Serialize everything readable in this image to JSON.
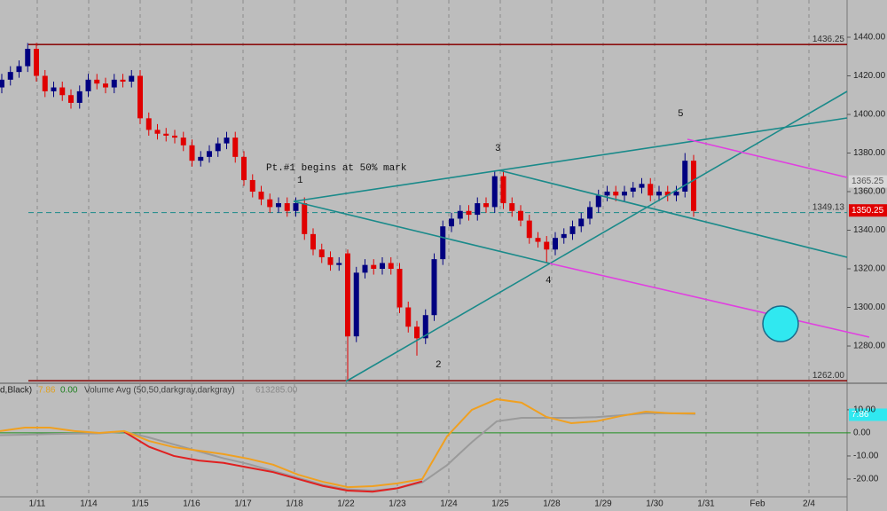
{
  "chart_data": [
    {
      "type": "candlestick",
      "xticks": [
        "1/11",
        "1/14",
        "1/15",
        "1/16",
        "1/17",
        "1/18",
        "1/22",
        "1/23",
        "1/24",
        "1/25",
        "1/28",
        "1/29",
        "1/30",
        "1/31",
        "Feb",
        "2/4"
      ],
      "ylim": [
        1260.7,
        1459.3
      ],
      "yticks": [
        {
          "value": 1280,
          "label": "1280.00"
        },
        {
          "value": 1300,
          "label": "1300.00"
        },
        {
          "value": 1320,
          "label": "1320.00"
        },
        {
          "value": 1340,
          "label": "1340.00"
        },
        {
          "value": 1360,
          "label": "1360.00"
        },
        {
          "value": 1380,
          "label": "1380.00"
        },
        {
          "value": 1400,
          "label": "1400.00"
        },
        {
          "value": 1420,
          "label": "1420.00"
        },
        {
          "value": 1440,
          "label": "1440.00"
        }
      ],
      "open": [
        1414,
        1418,
        1422,
        1425,
        1434,
        1420,
        1412,
        1414,
        1410,
        1406,
        1412,
        1418,
        1416,
        1414,
        1418,
        1417,
        1420,
        1398,
        1392,
        1390,
        1389,
        1388,
        1384,
        1376,
        1378,
        1381,
        1385,
        1388,
        1378,
        1366,
        1360,
        1356,
        1352,
        1354,
        1350,
        1354,
        1338,
        1330,
        1326,
        1322,
        1328,
        1285,
        1318,
        1322,
        1320,
        1323,
        1320,
        1300,
        1290,
        1284,
        1296,
        1325,
        1342,
        1346,
        1350,
        1348,
        1354,
        1352,
        1368,
        1354,
        1350,
        1345,
        1336,
        1334,
        1330,
        1336,
        1338,
        1342,
        1346,
        1352,
        1358,
        1360,
        1358,
        1360,
        1362,
        1364,
        1358,
        1360,
        1358,
        1360,
        1376
      ],
      "high": [
        1421,
        1425,
        1428,
        1437,
        1437,
        1423,
        1417,
        1417,
        1413,
        1415,
        1421,
        1421,
        1419,
        1421,
        1421,
        1423,
        1423,
        1401,
        1395,
        1393,
        1392,
        1391,
        1387,
        1381,
        1384,
        1388,
        1391,
        1391,
        1381,
        1369,
        1363,
        1359,
        1357,
        1357,
        1357,
        1357,
        1341,
        1333,
        1329,
        1326,
        1330,
        1321,
        1325,
        1325,
        1326,
        1326,
        1323,
        1303,
        1293,
        1299,
        1328,
        1345,
        1349,
        1353,
        1353,
        1357,
        1357,
        1371,
        1371,
        1357,
        1353,
        1348,
        1339,
        1337,
        1339,
        1341,
        1345,
        1349,
        1355,
        1361,
        1363,
        1363,
        1363,
        1365,
        1367,
        1367,
        1363,
        1363,
        1363,
        1380,
        1379
      ],
      "low": [
        1411,
        1415,
        1419,
        1422,
        1417,
        1409,
        1409,
        1407,
        1403,
        1403,
        1409,
        1413,
        1411,
        1411,
        1414,
        1414,
        1395,
        1389,
        1387,
        1386,
        1385,
        1381,
        1373,
        1373,
        1375,
        1378,
        1382,
        1375,
        1363,
        1357,
        1353,
        1349,
        1349,
        1347,
        1347,
        1335,
        1327,
        1323,
        1319,
        1319,
        1262,
        1282,
        1315,
        1317,
        1317,
        1317,
        1297,
        1287,
        1275,
        1281,
        1293,
        1322,
        1339,
        1343,
        1345,
        1345,
        1349,
        1349,
        1351,
        1347,
        1342,
        1333,
        1331,
        1323,
        1327,
        1333,
        1335,
        1339,
        1343,
        1349,
        1355,
        1355,
        1355,
        1357,
        1359,
        1355,
        1355,
        1355,
        1355,
        1357,
        1347
      ],
      "close": [
        1418,
        1422,
        1425,
        1434,
        1420,
        1412,
        1414,
        1410,
        1406,
        1412,
        1418,
        1416,
        1414,
        1418,
        1417,
        1420,
        1398,
        1392,
        1390,
        1389,
        1388,
        1384,
        1376,
        1378,
        1381,
        1385,
        1388,
        1378,
        1366,
        1360,
        1356,
        1352,
        1354,
        1350,
        1354,
        1338,
        1330,
        1326,
        1322,
        1323,
        1285,
        1318,
        1322,
        1320,
        1323,
        1320,
        1300,
        1290,
        1284,
        1296,
        1325,
        1342,
        1346,
        1350,
        1348,
        1354,
        1352,
        1368,
        1354,
        1350,
        1345,
        1336,
        1334,
        1330,
        1336,
        1338,
        1342,
        1346,
        1352,
        1358,
        1360,
        1358,
        1360,
        1362,
        1364,
        1358,
        1360,
        1358,
        1360,
        1376,
        1350
      ],
      "up_color": "#000080",
      "down_color": "#e00000",
      "levels": [
        1436.25,
        {
          "value": 1262,
          "label": "1262.00"
        },
        1349.13
      ],
      "markers": [
        1365.25,
        1350.25
      ],
      "annotations": [
        "Pt.#1 begins at 50% mark",
        "1",
        "2",
        "3",
        "4",
        "5"
      ]
    },
    {
      "type": "line",
      "legend_text": [
        "d,Black)",
        "7.86",
        "0.00",
        "Volume Avg (50,50,darkgray,darkgray)",
        "613285.00"
      ],
      "ylim": [
        -27.7,
        21.5
      ],
      "yticks": [
        {
          "value": 10,
          "label": "10.00"
        },
        {
          "value": 0,
          "label": "0.00"
        },
        {
          "value": -10,
          "label": "-10.00"
        },
        {
          "value": -20,
          "label": "-20.00"
        }
      ],
      "marker": 7.86,
      "series": [
        {
          "color": "#9a9a9a",
          "values": [
            -1,
            -0.8,
            -0.5,
            -0.3,
            -0.2,
            0.5,
            -2,
            -5,
            -8,
            -11,
            -13.5,
            -16.5,
            -19.5,
            -22.5,
            -24.5,
            -25,
            -24,
            -21.5,
            -14,
            -4,
            5,
            6.5,
            6.5,
            6.5,
            6.8,
            7.6,
            8.5,
            8.5,
            8.2
          ]
        },
        {
          "color": "#e02020",
          "values": [
            null,
            null,
            null,
            null,
            null,
            0.5,
            -6,
            -10,
            -12,
            -13,
            -15,
            -17,
            -20,
            -23,
            -25,
            -25.5,
            -24,
            -21,
            null,
            null,
            null,
            null,
            null,
            null,
            null,
            null,
            null,
            null,
            null
          ]
        },
        {
          "color": "#f0a020",
          "values": [
            0.8,
            2.3,
            2.3,
            0.8,
            0,
            0.8,
            -3.5,
            -6.2,
            -7.7,
            -9.2,
            -11.2,
            -13.8,
            -18.1,
            -21.2,
            -23.5,
            -23.1,
            -21.9,
            -20,
            -1.5,
            10,
            14.6,
            13.1,
            6.9,
            4.2,
            5,
            7.3,
            9.2,
            8.5,
            8.5
          ]
        }
      ]
    }
  ]
}
